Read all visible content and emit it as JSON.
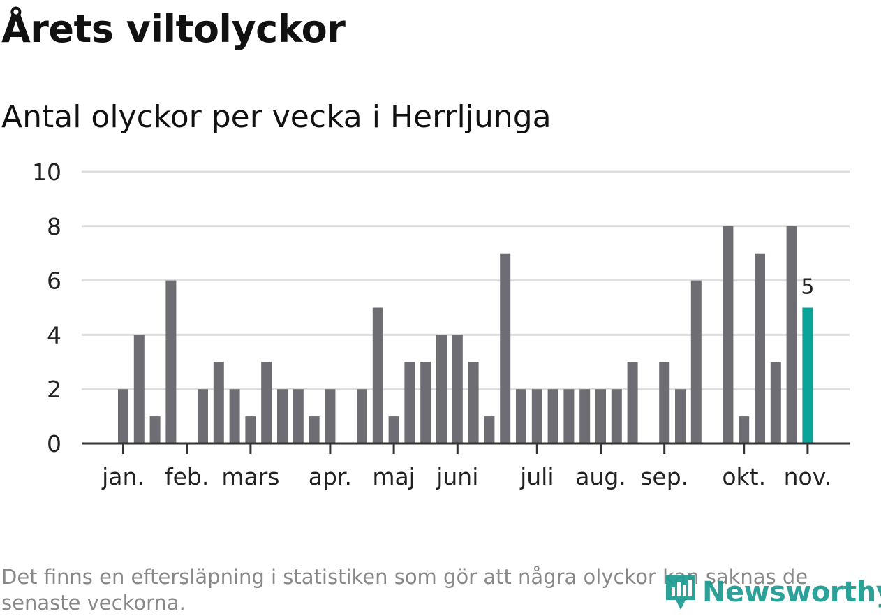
{
  "title": "Årets viltolyckor",
  "subtitle": "Antal olyckor per vecka i Herrljunga",
  "footnote": "Det finns en eftersläpning i statistiken som gör att några olyckor kan saknas de senaste veckorna.",
  "logo": {
    "text": "Newsworthy",
    "icon": "bar-chart-pin-icon"
  },
  "colors": {
    "bar": "#6e6d73",
    "highlight": "#0aa49b",
    "grid": "#dddddd",
    "axis": "#333333",
    "logo": "#1b9a8f"
  },
  "chart_data": {
    "type": "bar",
    "title": "Antal olyckor per vecka i Herrljunga",
    "xlabel": "",
    "ylabel": "",
    "ylim": [
      0,
      10
    ],
    "yticks": [
      0,
      2,
      4,
      6,
      8,
      10
    ],
    "weeks": [
      1,
      2,
      3,
      4,
      5,
      6,
      7,
      8,
      9,
      10,
      11,
      12,
      13,
      14,
      15,
      16,
      17,
      18,
      19,
      20,
      21,
      22,
      23,
      24,
      25,
      26,
      27,
      28,
      29,
      30,
      31,
      32,
      33,
      34,
      35,
      36,
      37,
      38,
      39,
      40,
      41,
      42,
      43,
      44
    ],
    "values": [
      2,
      4,
      1,
      6,
      0,
      2,
      3,
      2,
      1,
      3,
      2,
      2,
      1,
      2,
      0,
      2,
      5,
      1,
      3,
      3,
      4,
      4,
      3,
      1,
      7,
      2,
      2,
      2,
      2,
      2,
      2,
      2,
      3,
      0,
      3,
      2,
      6,
      0,
      8,
      1,
      7,
      3,
      8,
      5
    ],
    "highlight_index": 43,
    "highlight_label": "5",
    "month_ticks": [
      {
        "label": "jan.",
        "week": 1
      },
      {
        "label": "feb.",
        "week": 5
      },
      {
        "label": "mars",
        "week": 9
      },
      {
        "label": "apr.",
        "week": 14
      },
      {
        "label": "maj",
        "week": 18
      },
      {
        "label": "juni",
        "week": 22
      },
      {
        "label": "juli",
        "week": 27
      },
      {
        "label": "aug.",
        "week": 31
      },
      {
        "label": "sep.",
        "week": 35
      },
      {
        "label": "okt.",
        "week": 40
      },
      {
        "label": "nov.",
        "week": 44
      }
    ]
  }
}
